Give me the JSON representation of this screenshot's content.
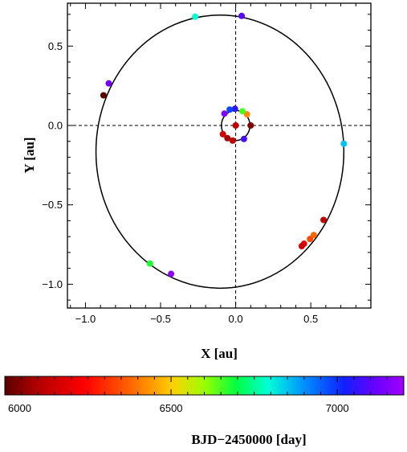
{
  "chart_data": {
    "type": "scatter",
    "title": "",
    "xlabel": "X [au]",
    "ylabel": "Y [au]",
    "xlim": [
      -1.12,
      0.9
    ],
    "ylim": [
      -1.15,
      0.77
    ],
    "xticks": [
      -1.0,
      -0.5,
      0.0,
      0.5
    ],
    "xtick_labels": [
      "−1.0",
      "−0.5",
      "0.0",
      "0.5"
    ],
    "yticks": [
      -1.0,
      -0.5,
      0.0,
      0.5
    ],
    "ytick_labels": [
      "−1.0",
      "−0.5",
      "0.0",
      "0.5"
    ],
    "grid": false,
    "origin_crosshair": true,
    "orbits": [
      {
        "center": [
          -0.105,
          -0.165
        ],
        "rx": 0.825,
        "ry": 0.86
      },
      {
        "center": [
          0.0,
          0.0
        ],
        "rx": 0.095,
        "ry": 0.095
      }
    ],
    "outer_points": [
      {
        "x": -0.88,
        "y": 0.19,
        "t": 6000
      },
      {
        "x": -0.845,
        "y": 0.265,
        "t": 7130
      },
      {
        "x": -0.27,
        "y": 0.685,
        "t": 6790
      },
      {
        "x": 0.04,
        "y": 0.69,
        "t": 7100
      },
      {
        "x": 0.72,
        "y": -0.115,
        "t": 6850
      },
      {
        "x": 0.585,
        "y": -0.595,
        "t": 6120
      },
      {
        "x": 0.52,
        "y": -0.69,
        "t": 6380
      },
      {
        "x": 0.495,
        "y": -0.715,
        "t": 6340
      },
      {
        "x": 0.455,
        "y": -0.745,
        "t": 6200
      },
      {
        "x": 0.44,
        "y": -0.76,
        "t": 6150
      },
      {
        "x": -0.57,
        "y": -0.87,
        "t": 6680
      },
      {
        "x": -0.43,
        "y": -0.935,
        "t": 7170
      }
    ],
    "inner_points": [
      {
        "x": 0.0,
        "y": 0.0,
        "t": 6130
      },
      {
        "x": 0.1,
        "y": 0.0,
        "t": 6040
      },
      {
        "x": 0.075,
        "y": 0.07,
        "t": 6420
      },
      {
        "x": 0.045,
        "y": 0.09,
        "t": 6650
      },
      {
        "x": -0.005,
        "y": 0.105,
        "t": 7050
      },
      {
        "x": -0.04,
        "y": 0.1,
        "t": 6980
      },
      {
        "x": -0.075,
        "y": 0.075,
        "t": 7150
      },
      {
        "x": 0.055,
        "y": -0.085,
        "t": 7080
      },
      {
        "x": -0.02,
        "y": -0.095,
        "t": 6120
      },
      {
        "x": -0.055,
        "y": -0.08,
        "t": 6080
      },
      {
        "x": -0.085,
        "y": -0.055,
        "t": 6150
      }
    ],
    "colorbar": {
      "label": "BJD−2450000 [day]",
      "range": [
        6000,
        7200
      ],
      "ticks": [
        6000,
        6500,
        7000
      ],
      "tick_labels": [
        "6000",
        "6500",
        "7000"
      ],
      "colormap": "rainbow-dark-red-to-violet"
    }
  }
}
